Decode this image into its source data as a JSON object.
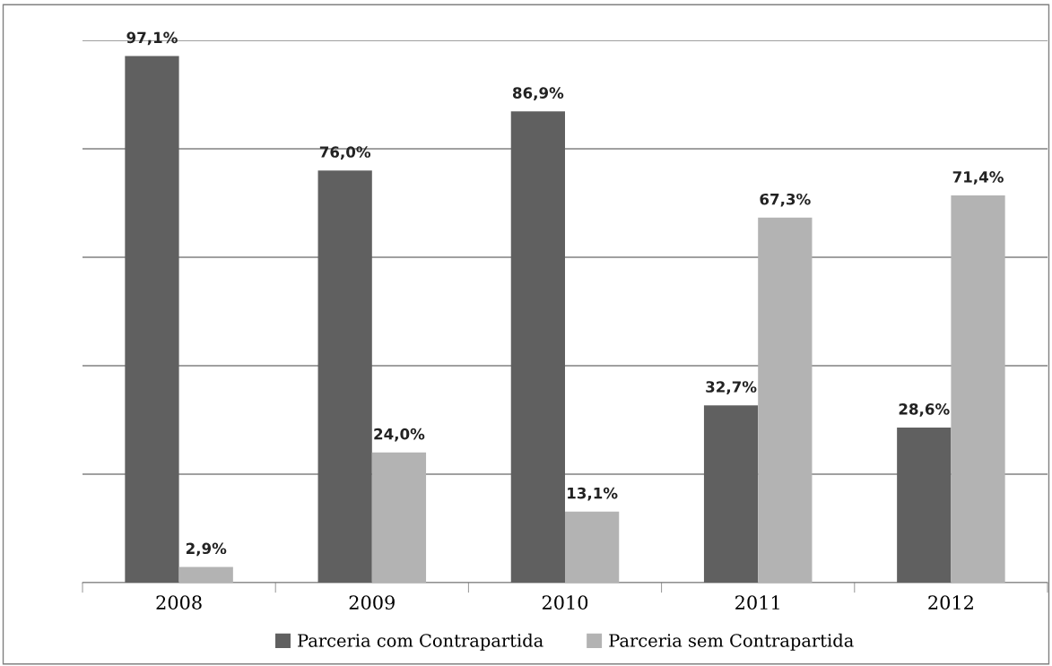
{
  "chart_data": {
    "type": "bar",
    "categories": [
      "2008",
      "2009",
      "2010",
      "2011",
      "2012"
    ],
    "series": [
      {
        "name": "Parceria com Contrapartida",
        "color": "#606060",
        "values": [
          97.1,
          76.0,
          86.9,
          32.7,
          28.6
        ],
        "value_labels": [
          "97,1%",
          "76,0%",
          "86,9%",
          "32,7%",
          "28,6%"
        ]
      },
      {
        "name": "Parceria sem Contrapartida",
        "color": "#b3b3b3",
        "values": [
          2.9,
          24.0,
          13.1,
          67.3,
          71.4
        ],
        "value_labels": [
          "2,9%",
          "24,0%",
          "13,1%",
          "67,3%",
          "71,4%"
        ]
      }
    ],
    "ylim": [
      0,
      100
    ],
    "yticks": [
      {
        "value": 0,
        "label": null
      },
      {
        "value": 20,
        "label": null
      },
      {
        "value": 40,
        "label": null
      },
      {
        "value": 60,
        "label": null
      },
      {
        "value": 80,
        "label": null
      },
      {
        "value": 100,
        "label": null
      }
    ],
    "tick_labels": "x",
    "grid": "y",
    "legend": "bottom"
  }
}
